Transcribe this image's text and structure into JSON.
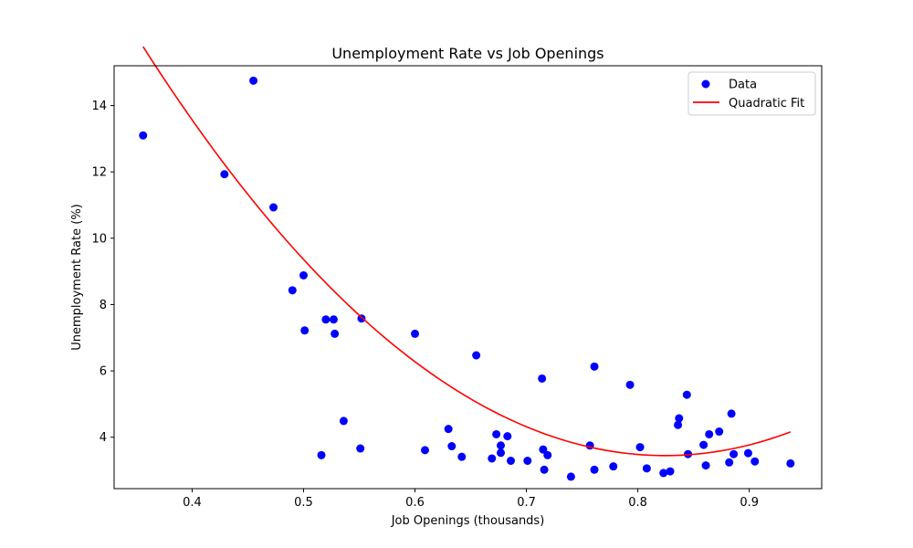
{
  "chart_data": {
    "type": "scatter",
    "title": "Unemployment Rate vs Job Openings",
    "xlabel": "Job Openings (thousands)",
    "ylabel": "Unemployment Rate (%)",
    "xlim": [
      0.33,
      0.965
    ],
    "ylim": [
      2.45,
      15.2
    ],
    "xticks": [
      0.4,
      0.5,
      0.6,
      0.7,
      0.8,
      0.9
    ],
    "xtick_labels": [
      "0.4",
      "0.5",
      "0.6",
      "0.7",
      "0.8",
      "0.9"
    ],
    "yticks": [
      4,
      6,
      8,
      10,
      12,
      14
    ],
    "ytick_labels": [
      "4",
      "6",
      "8",
      "10",
      "12",
      "14"
    ],
    "grid": false,
    "legend_position": "top-right",
    "series": [
      {
        "name": "Data",
        "kind": "scatter",
        "color": "#0000ff",
        "points": [
          [
            0.356,
            13.1
          ],
          [
            0.429,
            11.93
          ],
          [
            0.455,
            14.75
          ],
          [
            0.473,
            10.93
          ],
          [
            0.49,
            8.43
          ],
          [
            0.5,
            8.88
          ],
          [
            0.501,
            7.22
          ],
          [
            0.516,
            3.46
          ],
          [
            0.52,
            7.55
          ],
          [
            0.527,
            7.55
          ],
          [
            0.528,
            7.12
          ],
          [
            0.536,
            4.49
          ],
          [
            0.551,
            3.66
          ],
          [
            0.552,
            7.58
          ],
          [
            0.6,
            7.12
          ],
          [
            0.609,
            3.61
          ],
          [
            0.63,
            4.25
          ],
          [
            0.633,
            3.73
          ],
          [
            0.642,
            3.41
          ],
          [
            0.655,
            6.47
          ],
          [
            0.669,
            3.36
          ],
          [
            0.673,
            4.09
          ],
          [
            0.677,
            3.75
          ],
          [
            0.677,
            3.53
          ],
          [
            0.683,
            4.03
          ],
          [
            0.686,
            3.29
          ],
          [
            0.701,
            3.29
          ],
          [
            0.714,
            5.77
          ],
          [
            0.715,
            3.63
          ],
          [
            0.716,
            3.02
          ],
          [
            0.719,
            3.46
          ],
          [
            0.74,
            2.81
          ],
          [
            0.757,
            3.75
          ],
          [
            0.761,
            6.13
          ],
          [
            0.761,
            3.02
          ],
          [
            0.778,
            3.12
          ],
          [
            0.793,
            5.58
          ],
          [
            0.802,
            3.7
          ],
          [
            0.808,
            3.06
          ],
          [
            0.823,
            2.92
          ],
          [
            0.829,
            2.97
          ],
          [
            0.836,
            4.37
          ],
          [
            0.837,
            4.57
          ],
          [
            0.844,
            5.28
          ],
          [
            0.845,
            3.49
          ],
          [
            0.859,
            3.77
          ],
          [
            0.861,
            3.15
          ],
          [
            0.864,
            4.09
          ],
          [
            0.873,
            4.17
          ],
          [
            0.882,
            3.24
          ],
          [
            0.884,
            4.71
          ],
          [
            0.886,
            3.49
          ],
          [
            0.899,
            3.52
          ],
          [
            0.905,
            3.27
          ],
          [
            0.937,
            3.21
          ]
        ]
      },
      {
        "name": "Quadratic Fit",
        "kind": "line",
        "color": "#ff0000",
        "x_range": [
          0.356,
          0.937
        ],
        "coefficients": {
          "a": 56.2,
          "b": -92.66,
          "c": 41.64
        },
        "equation": "y = a*x^2 + b*x + c"
      }
    ]
  }
}
